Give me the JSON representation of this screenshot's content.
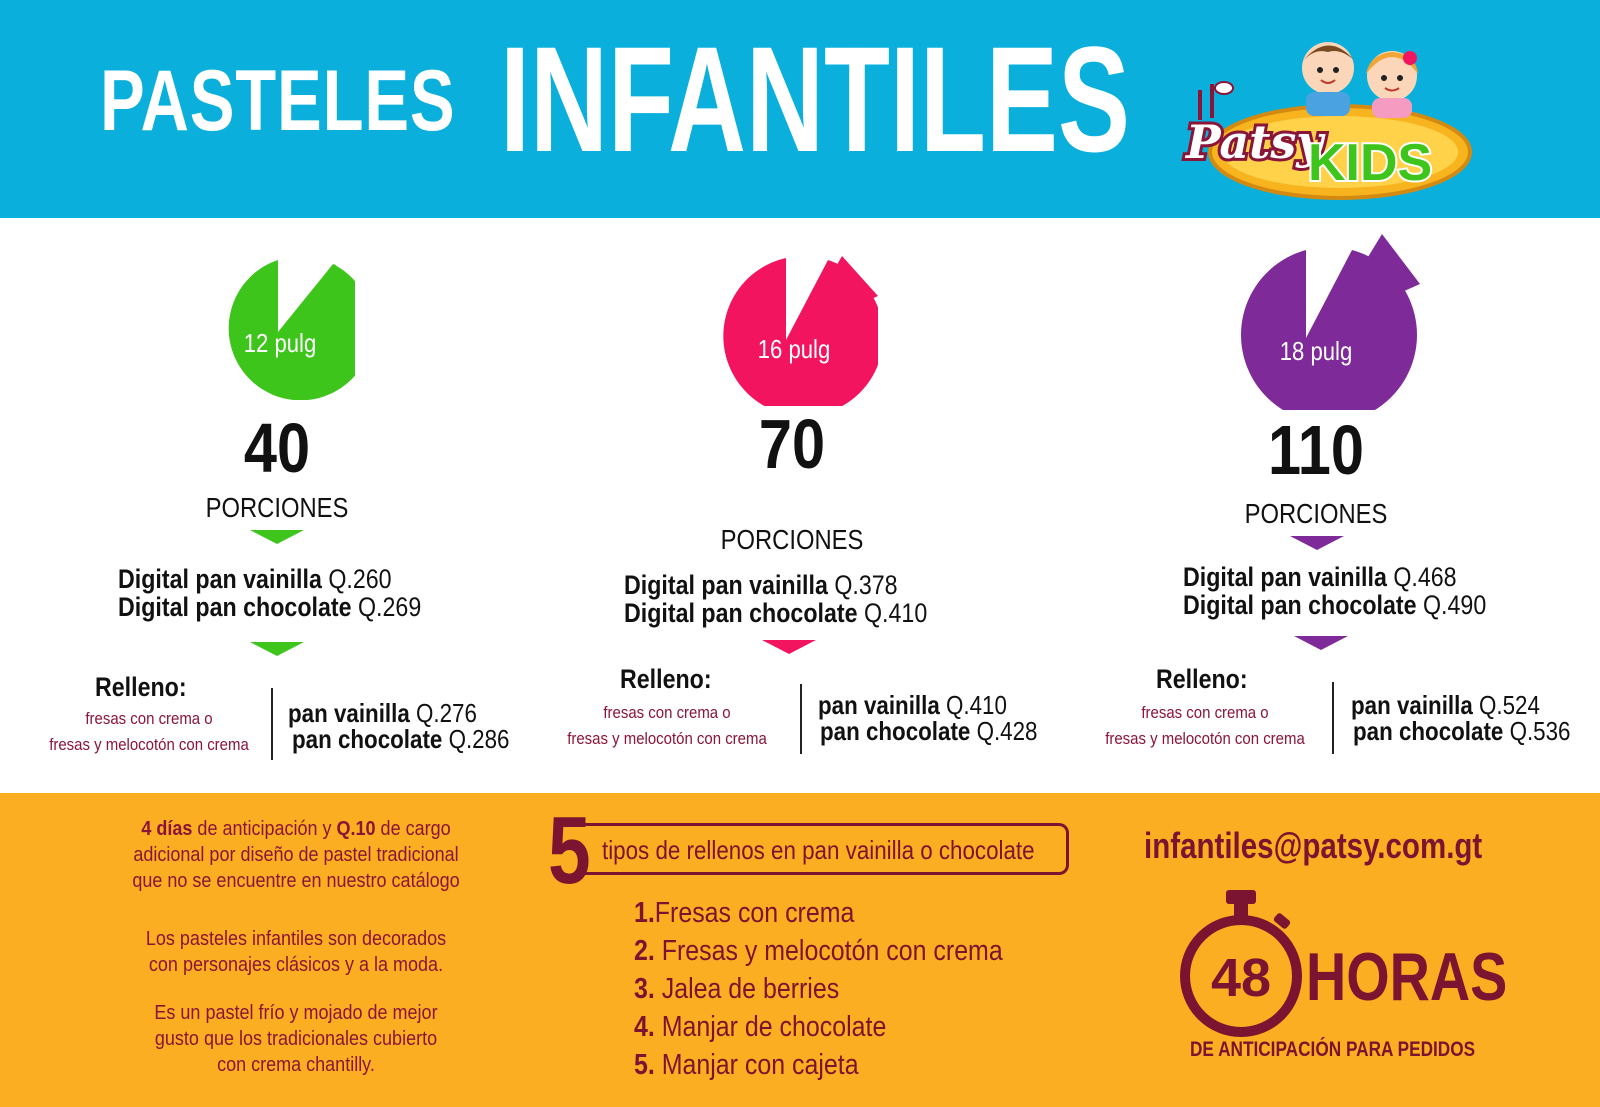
{
  "header": {
    "title_small": "PASTELES",
    "title_big": "INFANTILES",
    "logo_text": "Patsy",
    "logo_kids": "KIDS"
  },
  "colors": {
    "header_bg": "#0ab0db",
    "green": "#3ec51c",
    "pink": "#f2145e",
    "purple": "#7e2a98",
    "footer_bg": "#fbae21",
    "maroon": "#7a1430"
  },
  "sizes": [
    {
      "pie_label": "12 pulg",
      "portions": "40",
      "portions_label": "PORCIONES",
      "digital_vainilla_label": "Digital pan vainilla",
      "digital_vainilla_price": "Q.260",
      "digital_chocolate_label": "Digital pan chocolate",
      "digital_chocolate_price": "Q.269",
      "relleno_title": "Relleno:",
      "relleno_desc_1": "fresas con crema o",
      "relleno_desc_2": "fresas y melocotón con crema",
      "fill_vainilla_label": "pan vainilla",
      "fill_vainilla_price": "Q.276",
      "fill_chocolate_label": "pan chocolate",
      "fill_chocolate_price": "Q.286"
    },
    {
      "pie_label": "16 pulg",
      "portions": "70",
      "portions_label": "PORCIONES",
      "digital_vainilla_label": "Digital pan vainilla",
      "digital_vainilla_price": "Q.378",
      "digital_chocolate_label": "Digital pan chocolate",
      "digital_chocolate_price": "Q.410",
      "relleno_title": "Relleno:",
      "relleno_desc_1": "fresas con crema o",
      "relleno_desc_2": "fresas y melocotón con crema",
      "fill_vainilla_label": "pan vainilla",
      "fill_vainilla_price": "Q.410",
      "fill_chocolate_label": "pan chocolate",
      "fill_chocolate_price": "Q.428"
    },
    {
      "pie_label": "18 pulg",
      "portions": "110",
      "portions_label": "PORCIONES",
      "digital_vainilla_label": "Digital pan vainilla",
      "digital_vainilla_price": "Q.468",
      "digital_chocolate_label": "Digital pan chocolate",
      "digital_chocolate_price": "Q.490",
      "relleno_title": "Relleno:",
      "relleno_desc_1": "fresas con crema o",
      "relleno_desc_2": "fresas y melocotón con crema",
      "fill_vainilla_label": "pan vainilla",
      "fill_vainilla_price": "Q.524",
      "fill_chocolate_label": "pan chocolate",
      "fill_chocolate_price": "Q.536"
    }
  ],
  "footer": {
    "notice_days": "4 días",
    "notice_mid": " de anticipación  y ",
    "notice_charge": "Q.10",
    "notice_rest": " de cargo",
    "notice_line2": "adicional por diseño de pastel tradicional",
    "notice_line3": "que no se encuentre en nuestro catálogo",
    "decor_line1": "Los pasteles infantiles son decorados",
    "decor_line2": "con personajes clásicos y a la moda.",
    "cold_line1": "Es un pastel frío y mojado de mejor",
    "cold_line2": "gusto que los tradicionales cubierto",
    "cold_line3": "con crema chantilly.",
    "types_number": "5",
    "types_text": "tipos de rellenos en pan vainilla o chocolate",
    "fillings": [
      {
        "num": "1.",
        "text": "Fresas con crema"
      },
      {
        "num": "2.",
        "text": " Fresas y melocotón con crema"
      },
      {
        "num": "3.",
        "text": " Jalea de berries"
      },
      {
        "num": "4.",
        "text": " Manjar de chocolate"
      },
      {
        "num": "5.",
        "text": " Manjar con cajeta"
      }
    ],
    "email": "infantiles@patsy.com.gt",
    "hours_number": "48",
    "hours_label": "HORAS",
    "hours_sub": "DE ANTICIPACIÓN PARA PEDIDOS"
  }
}
